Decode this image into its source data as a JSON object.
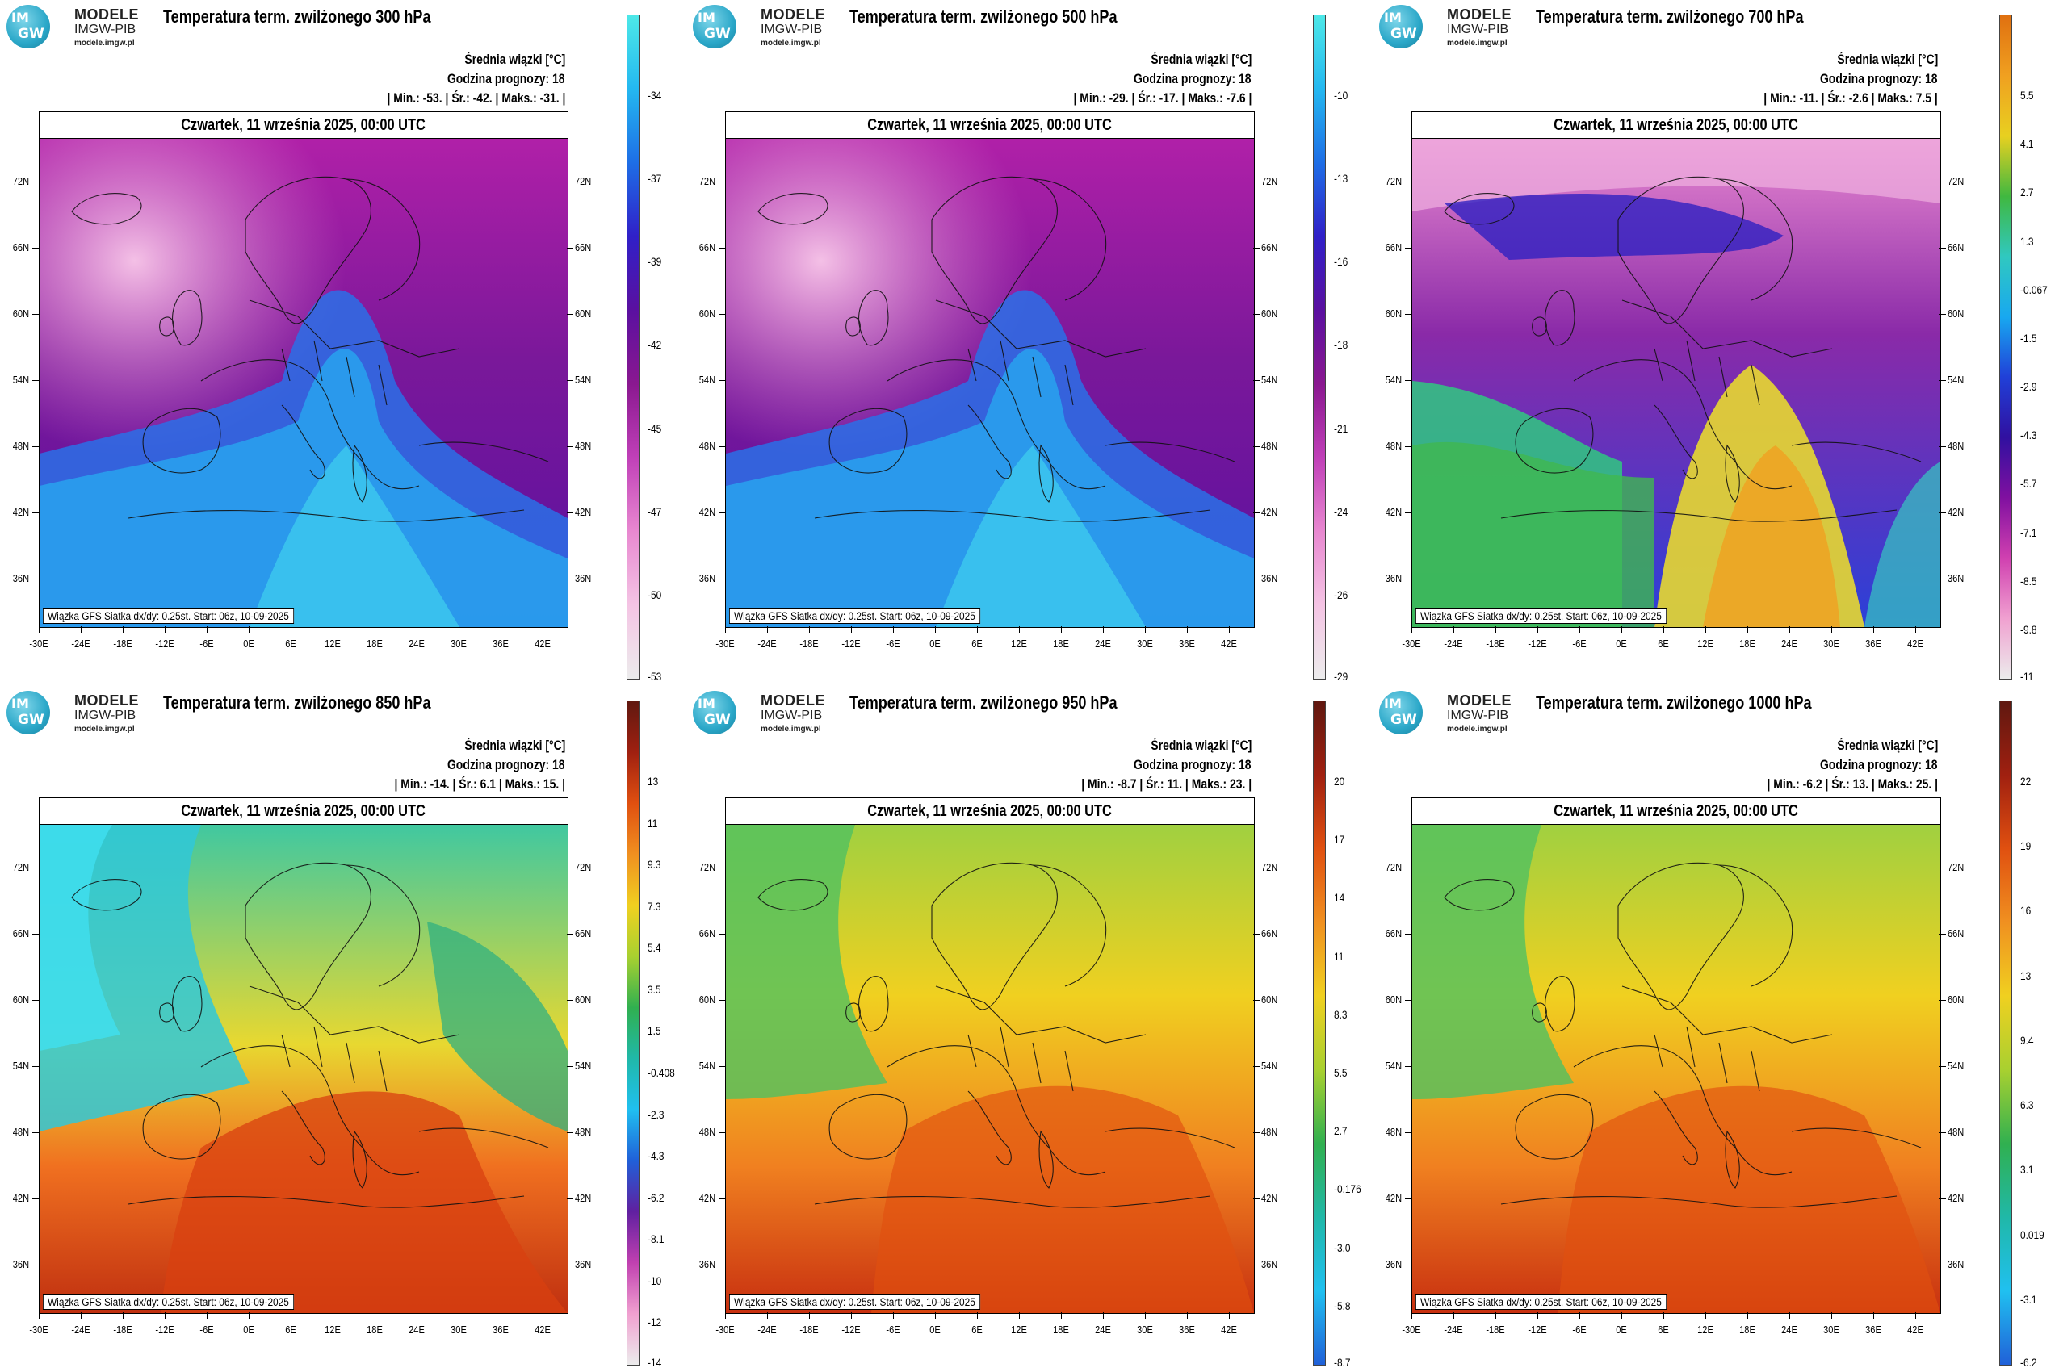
{
  "logo": {
    "text1": "MODELE",
    "text2": "IMGW-PIB",
    "text3": "modele.imgw.pl",
    "mark": "IM GW"
  },
  "common": {
    "info_title": "Średnia wiązki [°C]",
    "forecast_hour": "Godzina prognozy: 18",
    "date": "Czwartek, 11 września 2025, 00:00 UTC",
    "footer": "Wiązka GFS Siatka dx/dy: 0.25st. Start: 06z, 10-09-2025",
    "lat_labels": [
      "72N",
      "66N",
      "60N",
      "54N",
      "48N",
      "42N",
      "36N"
    ],
    "lon_labels": [
      "-30E",
      "-24E",
      "-18E",
      "-12E",
      "-6E",
      "0E",
      "6E",
      "12E",
      "18E",
      "24E",
      "30E",
      "36E",
      "42E"
    ]
  },
  "panels": [
    {
      "title": "Temperatura term. zwilżonego 300 hPa",
      "stats": "| Min.:   -53. | Śr.:   -42. | Maks.:   -31. |",
      "scale": "cold",
      "colorbar_labels": [
        "-34",
        "-37",
        "-39",
        "-42",
        "-45",
        "-47",
        "-50",
        "-53"
      ]
    },
    {
      "title": "Temperatura term. zwilżonego 500 hPa",
      "stats": "| Min.:   -29. | Śr.:   -17. | Maks.:   -7.6 |",
      "scale": "cold",
      "colorbar_labels": [
        "-10",
        "-13",
        "-16",
        "-18",
        "-21",
        "-24",
        "-26",
        "-29"
      ]
    },
    {
      "title": "Temperatura term. zwilżonego 700 hPa",
      "stats": "| Min.:   -11. | Śr.:   -2.6 | Maks.:   7.5 |",
      "scale": "mixed",
      "colorbar_labels": [
        "5.5",
        "4.1",
        "2.7",
        "1.3",
        "-0.067",
        "-1.5",
        "-2.9",
        "-4.3",
        "-5.7",
        "-7.1",
        "-8.5",
        "-9.8",
        "-11"
      ]
    },
    {
      "title": "Temperatura term. zwilżonego 850 hPa",
      "stats": "| Min.:   -14. | Śr.:   6.1 | Maks.:   15. |",
      "scale": "warm850",
      "colorbar_labels": [
        "13",
        "11",
        "9.3",
        "7.3",
        "5.4",
        "3.5",
        "1.5",
        "-0.408",
        "-2.3",
        "-4.3",
        "-6.2",
        "-8.1",
        "-10",
        "-12",
        "-14"
      ]
    },
    {
      "title": "Temperatura term. zwilżonego 950 hPa",
      "stats": "| Min.:   -8.7 | Śr.:   11. | Maks.:   23. |",
      "scale": "warm",
      "colorbar_labels": [
        "20",
        "17",
        "14",
        "11",
        "8.3",
        "5.5",
        "2.7",
        "-0.176",
        "-3.0",
        "-5.8",
        "-8.7"
      ]
    },
    {
      "title": "Temperatura term. zwilżonego 1000 hPa",
      "stats": "| Min.:   -6.2 | Śr.:   13. | Maks.:   25. |",
      "scale": "warm",
      "colorbar_labels": [
        "22",
        "19",
        "16",
        "13",
        "9.4",
        "6.3",
        "3.1",
        "0.019",
        "-3.1",
        "-6.2"
      ]
    }
  ]
}
